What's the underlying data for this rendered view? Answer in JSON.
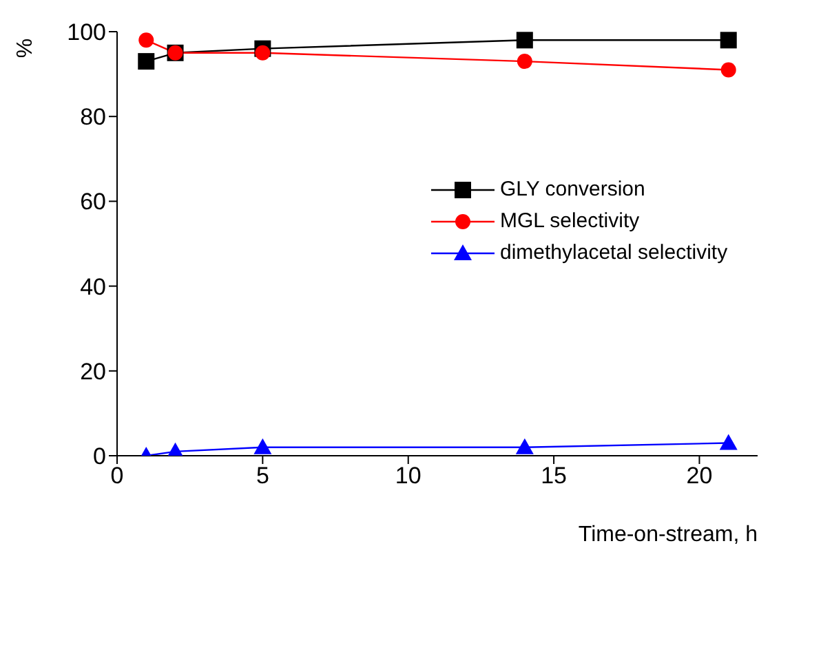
{
  "chart_data": {
    "type": "line",
    "xlabel": "Time-on-stream, h",
    "ylabel": "%",
    "xlim": [
      0,
      22
    ],
    "xticks": [
      0,
      5,
      10,
      15,
      20
    ],
    "ylim": [
      0,
      100
    ],
    "yticks": [
      0,
      20,
      40,
      60,
      80,
      100
    ],
    "grid": false,
    "legend": "right",
    "line_style": "solid",
    "x": [
      1,
      2,
      5,
      14,
      21
    ],
    "series": [
      {
        "name": "GLY conversion",
        "color": "#000000",
        "marker": "square",
        "values": [
          93,
          95,
          96,
          98,
          98
        ]
      },
      {
        "name": "MGL selectivity",
        "color": "#ff0000",
        "marker": "circle",
        "values": [
          98,
          95,
          95,
          93,
          91
        ]
      },
      {
        "name": "dimethylacetal selectivity",
        "color": "#0000ff",
        "marker": "triangle",
        "values": [
          0,
          1,
          2,
          2,
          3
        ]
      }
    ]
  }
}
